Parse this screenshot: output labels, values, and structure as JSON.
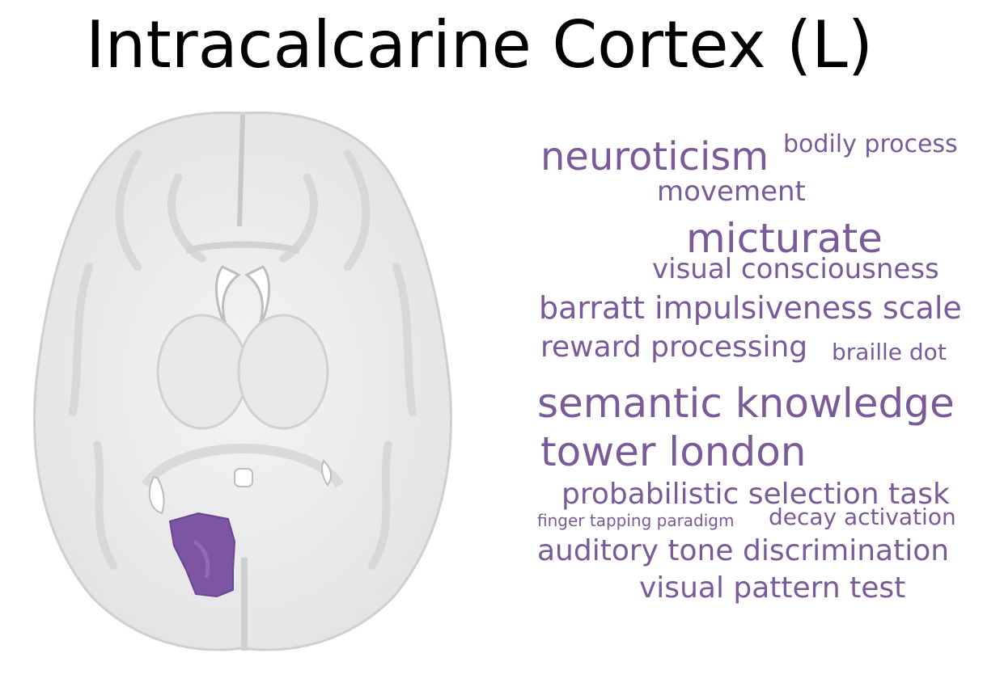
{
  "title": "Intracalcarine Cortex (L)",
  "colors": {
    "accent": "#7a5a97",
    "region": "#7c55a3",
    "brain_bg": "#ececec"
  },
  "word_cloud": [
    {
      "text": "neuroticism"
    },
    {
      "text": "bodily process"
    },
    {
      "text": "movement"
    },
    {
      "text": "micturate"
    },
    {
      "text": "visual consciousness"
    },
    {
      "text": "barratt impulsiveness scale"
    },
    {
      "text": "reward processing"
    },
    {
      "text": "braille dot"
    },
    {
      "text": "semantic knowledge"
    },
    {
      "text": "tower london"
    },
    {
      "text": "probabilistic selection task"
    },
    {
      "text": "finger tapping paradigm"
    },
    {
      "text": "decay activation"
    },
    {
      "text": "auditory tone discrimination"
    },
    {
      "text": "visual pattern test"
    }
  ]
}
